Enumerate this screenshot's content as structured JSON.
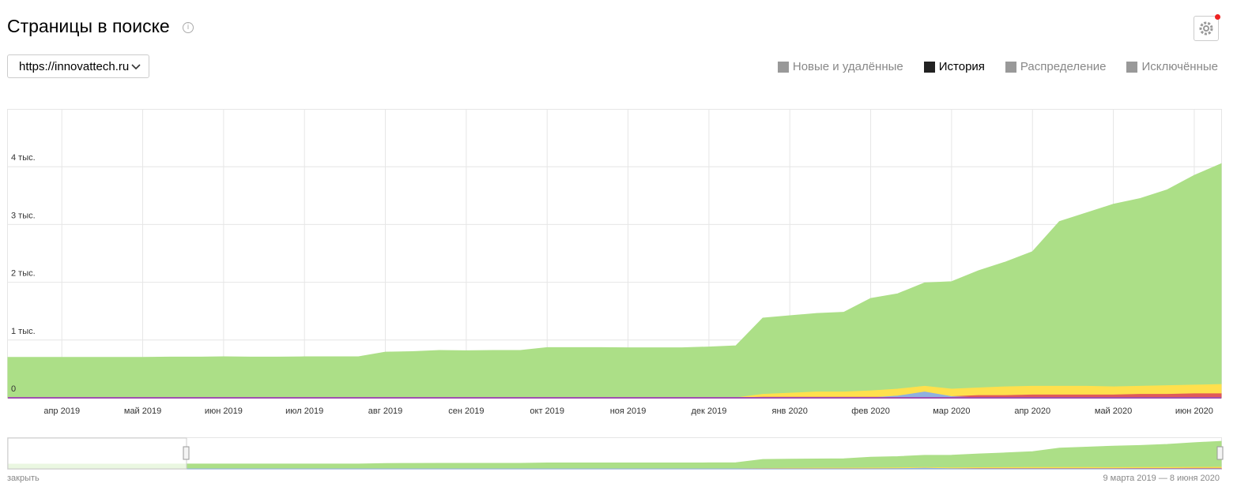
{
  "header": {
    "title": "Страницы в поиске",
    "site": "https://innovattech.ru",
    "tabs": [
      "Новые и удалённые",
      "История",
      "Распределение",
      "Исключённые"
    ],
    "active_tab": 1
  },
  "chart_data": {
    "type": "area",
    "categories": [
      null,
      null,
      "апр 2019",
      null,
      null,
      "май 2019",
      null,
      null,
      "июн 2019",
      null,
      null,
      "июл 2019",
      null,
      null,
      "авг 2019",
      null,
      null,
      "сен 2019",
      null,
      null,
      "окт 2019",
      null,
      null,
      "ноя 2019",
      null,
      null,
      "дек 2019",
      null,
      null,
      "янв 2020",
      null,
      null,
      "фев 2020",
      null,
      null,
      "мар 2020",
      null,
      null,
      "апр 2020",
      null,
      null,
      "май 2020",
      null,
      null,
      "июн 2020",
      null
    ],
    "series": [
      {
        "color": "#acdf87",
        "values": [
          700,
          700,
          700,
          700,
          700,
          700,
          705,
          705,
          710,
          705,
          705,
          710,
          710,
          710,
          790,
          800,
          820,
          815,
          820,
          820,
          870,
          870,
          870,
          865,
          865,
          865,
          880,
          900,
          1380,
          1420,
          1460,
          1480,
          1720,
          1800,
          1990,
          2010,
          2200,
          2350,
          2530,
          3050,
          3200,
          3350,
          3450,
          3600,
          3850,
          4050
        ]
      },
      {
        "color": "#ffe04d",
        "values": [
          0,
          0,
          0,
          0,
          0,
          0,
          0,
          0,
          0,
          0,
          0,
          0,
          0,
          0,
          0,
          0,
          0,
          0,
          0,
          0,
          0,
          0,
          0,
          0,
          0,
          0,
          0,
          0,
          60,
          80,
          100,
          100,
          120,
          150,
          200,
          150,
          170,
          190,
          200,
          200,
          200,
          190,
          200,
          210,
          220,
          230
        ]
      },
      {
        "color": "#e05a5a",
        "values": [
          0,
          0,
          0,
          0,
          0,
          0,
          0,
          0,
          0,
          0,
          0,
          0,
          0,
          0,
          0,
          0,
          0,
          0,
          0,
          0,
          0,
          0,
          0,
          0,
          0,
          0,
          0,
          0,
          10,
          10,
          10,
          10,
          10,
          10,
          20,
          20,
          40,
          40,
          50,
          50,
          50,
          50,
          60,
          60,
          70,
          70
        ]
      },
      {
        "color": "#8fb0e0",
        "values": [
          0,
          0,
          0,
          0,
          0,
          0,
          0,
          0,
          0,
          0,
          0,
          0,
          0,
          0,
          0,
          0,
          0,
          0,
          0,
          0,
          0,
          0,
          0,
          0,
          0,
          0,
          0,
          0,
          0,
          0,
          0,
          0,
          0,
          30,
          100,
          20,
          0,
          0,
          0,
          0,
          0,
          0,
          0,
          0,
          0,
          0
        ]
      }
    ],
    "ylim": [
      0,
      5000
    ],
    "yticks": [
      0,
      {
        "value": 1000,
        "label": "1 тыс."
      },
      {
        "value": 2000,
        "label": "2 тыс."
      },
      {
        "value": 3000,
        "label": "3 тыс."
      },
      {
        "value": 4000,
        "label": "4 тыс."
      }
    ],
    "grid": true
  },
  "footer": {
    "close": "закрыть",
    "range": "9 марта 2019 — 8 июня 2020"
  }
}
